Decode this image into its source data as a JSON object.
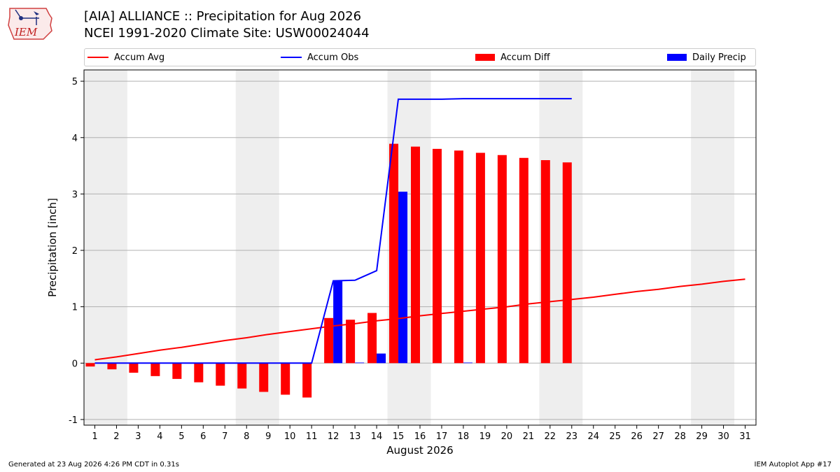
{
  "header": {
    "title_line1": "[AIA] ALLIANCE :: Precipitation for Aug 2026",
    "title_line2": "NCEI 1991-2020 Climate Site: USW00024044",
    "logo_text": "IEM"
  },
  "footer": {
    "left": "Generated at 23 Aug 2026 4:26 PM CDT in 0.31s",
    "right": "IEM Autoplot App #17"
  },
  "colors": {
    "avg": "#ff0000",
    "obs": "#0000ff",
    "diff": "#ff0000",
    "daily": "#0000ff",
    "weekend": "#eeeeee",
    "grid": "#b0b0b0"
  },
  "chart_data": {
    "type": "bar",
    "xlabel": "August 2026",
    "ylabel": "Precipitation [inch]",
    "xlim": [
      0.5,
      31.5
    ],
    "ylim": [
      -1.1,
      5.2
    ],
    "yticks": [
      -1,
      0,
      1,
      2,
      3,
      4,
      5
    ],
    "grid": "horizontal",
    "legend_placement": "top",
    "x": [
      1,
      2,
      3,
      4,
      5,
      6,
      7,
      8,
      9,
      10,
      11,
      12,
      13,
      14,
      15,
      16,
      17,
      18,
      19,
      20,
      21,
      22,
      23,
      24,
      25,
      26,
      27,
      28,
      29,
      30,
      31
    ],
    "shaded_weekend_ranges": [
      [
        1,
        2
      ],
      [
        8,
        9
      ],
      [
        15,
        16
      ],
      [
        22,
        23
      ],
      [
        29,
        30
      ]
    ],
    "series": [
      {
        "name": "Accum Avg",
        "kind": "line",
        "x": [
          1,
          2,
          3,
          4,
          5,
          6,
          7,
          8,
          9,
          10,
          11,
          12,
          13,
          14,
          15,
          16,
          17,
          18,
          19,
          20,
          21,
          22,
          23,
          24,
          25,
          26,
          27,
          28,
          29,
          30,
          31
        ],
        "values": [
          0.06,
          0.11,
          0.17,
          0.23,
          0.28,
          0.34,
          0.4,
          0.45,
          0.51,
          0.56,
          0.61,
          0.66,
          0.7,
          0.75,
          0.79,
          0.84,
          0.88,
          0.92,
          0.96,
          1.0,
          1.05,
          1.09,
          1.13,
          1.17,
          1.22,
          1.27,
          1.31,
          1.36,
          1.4,
          1.45,
          1.49
        ]
      },
      {
        "name": "Accum Obs",
        "kind": "line",
        "x": [
          1,
          2,
          3,
          4,
          5,
          6,
          7,
          8,
          9,
          10,
          11,
          12,
          13,
          14,
          15,
          16,
          17,
          18,
          19,
          20,
          21,
          22,
          23
        ],
        "values": [
          0,
          0,
          0,
          0,
          0,
          0,
          0,
          0,
          0,
          0,
          0,
          1.46,
          1.47,
          1.64,
          4.68,
          4.68,
          4.68,
          4.69,
          4.69,
          4.69,
          4.69,
          4.69,
          4.69
        ]
      },
      {
        "name": "Accum Diff",
        "kind": "bar",
        "x": [
          1,
          2,
          3,
          4,
          5,
          6,
          7,
          8,
          9,
          10,
          11,
          12,
          13,
          14,
          15,
          16,
          17,
          18,
          19,
          20,
          21,
          22,
          23
        ],
        "values": [
          -0.06,
          -0.11,
          -0.17,
          -0.23,
          -0.28,
          -0.34,
          -0.4,
          -0.45,
          -0.51,
          -0.56,
          -0.61,
          0.8,
          0.77,
          0.89,
          3.89,
          3.84,
          3.8,
          3.77,
          3.73,
          3.69,
          3.64,
          3.6,
          3.56
        ]
      },
      {
        "name": "Daily Precip",
        "kind": "bar",
        "x": [
          1,
          2,
          3,
          4,
          5,
          6,
          7,
          8,
          9,
          10,
          11,
          12,
          13,
          14,
          15,
          16,
          17,
          18,
          19,
          20,
          21,
          22,
          23
        ],
        "values": [
          0,
          0,
          0,
          0,
          0,
          0,
          0,
          0,
          0,
          0,
          0,
          1.46,
          0.01,
          0.17,
          3.04,
          0,
          0,
          0.01,
          0,
          0,
          0,
          0,
          0
        ]
      }
    ]
  }
}
